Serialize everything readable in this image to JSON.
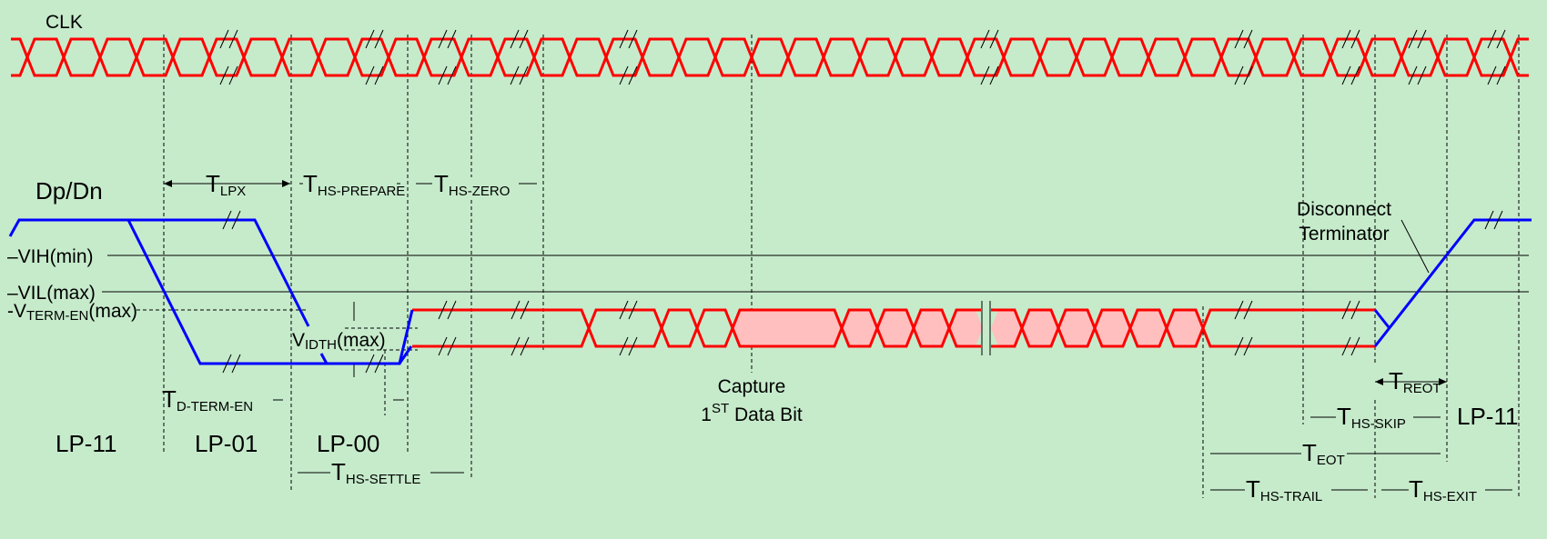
{
  "colors": {
    "background": "#c6ebcb",
    "hs_signal": "#ff0000",
    "hs_fill": "#ffbfbf",
    "lp_signal": "#0000ff",
    "annotation": "#000000"
  },
  "signals": {
    "clock": "CLK",
    "data": "Dp/Dn"
  },
  "levels": {
    "vih": "–VIH(min)",
    "vil": "–VIL(max)",
    "vterm_main": "-V",
    "vterm_sub": "TERM-EN",
    "vterm_suffix": "(max)",
    "vidth_main": "V",
    "vidth_sub": "IDTH",
    "vidth_suffix": "(max)"
  },
  "timings": {
    "t_lpx": {
      "main": "T",
      "sub": "LPX"
    },
    "t_hs_prepare": {
      "main": "T",
      "sub": "HS-PREPARE"
    },
    "t_hs_zero": {
      "main": "T",
      "sub": "HS-ZERO"
    },
    "t_d_term_en": {
      "main": "T",
      "sub": "D-TERM-EN"
    },
    "t_hs_settle": {
      "main": "T",
      "sub": "HS-SETTLE"
    },
    "t_reot": {
      "main": "T",
      "sub": "REOT"
    },
    "t_hs_skip": {
      "main": "T",
      "sub": "HS-SKIP"
    },
    "t_eot": {
      "main": "T",
      "sub": "EOT"
    },
    "t_hs_trail": {
      "main": "T",
      "sub": "HS-TRAIL"
    },
    "t_hs_exit": {
      "main": "T",
      "sub": "HS-EXIT"
    }
  },
  "states": {
    "lp11_start": "LP-11",
    "lp01": "LP-01",
    "lp00": "LP-00",
    "lp11_end": "LP-11"
  },
  "annotations": {
    "capture_line1": "Capture",
    "capture_line2_num": "1",
    "capture_line2_sup": "ST",
    "capture_line2_rest": " Data Bit",
    "disconnect_line1": "Disconnect",
    "disconnect_line2": "Terminator"
  }
}
